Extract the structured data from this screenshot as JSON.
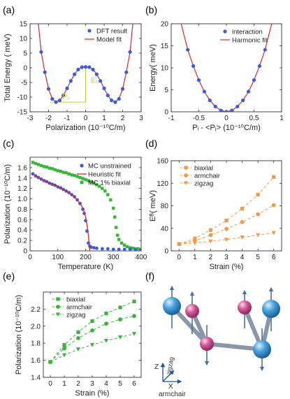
{
  "chart_data": [
    {
      "panel": "(a)",
      "type": "scatter",
      "xlabel": "Polarization (10⁻¹⁰C/m)",
      "ylabel": "Total Energy ( meV)",
      "xlim": [
        -3,
        3
      ],
      "ylim": [
        -15,
        15
      ],
      "xticks": [
        "-3",
        "-2",
        "-1",
        "0",
        "1",
        "2",
        "3"
      ],
      "yticks": [
        "-15",
        "-10",
        "-5",
        "0",
        "5",
        "10",
        "15"
      ],
      "legend": {
        "placement": "top-right",
        "entries": [
          "DFT result",
          "Model fit"
        ]
      },
      "annotations": [
        "P₀",
        "E₀"
      ],
      "series": [
        {
          "name": "DFT result",
          "kind": "points",
          "color": "#3b5bdb",
          "x": [
            -2.4,
            -2.2,
            -2.0,
            -1.8,
            -1.6,
            -1.4,
            -1.2,
            -1.0,
            -0.8,
            -0.6,
            -0.4,
            -0.2,
            0.0,
            0.2,
            0.4,
            0.6,
            0.8,
            1.0,
            1.2,
            1.4,
            1.6,
            1.8,
            2.0,
            2.2,
            2.4
          ],
          "y": [
            5.4,
            -1.5,
            -7.2,
            -10.6,
            -11.7,
            -11.1,
            -9.4,
            -7.0,
            -4.5,
            -2.2,
            -0.6,
            0.2,
            0.3,
            0.2,
            -0.6,
            -2.2,
            -4.5,
            -7.0,
            -9.4,
            -11.1,
            -11.7,
            -10.6,
            -7.2,
            -1.5,
            5.4
          ]
        },
        {
          "name": "Model fit",
          "kind": "line",
          "color": "#e0242b",
          "x": [
            -2.55,
            -2.4,
            -2.2,
            -2.0,
            -1.8,
            -1.6,
            -1.4,
            -1.2,
            -1.0,
            -0.8,
            -0.6,
            -0.4,
            -0.2,
            0.0,
            0.2,
            0.4,
            0.6,
            0.8,
            1.0,
            1.2,
            1.4,
            1.6,
            1.8,
            2.0,
            2.2,
            2.4,
            2.55
          ],
          "y": [
            15,
            5.4,
            -1.5,
            -7.2,
            -10.6,
            -11.7,
            -11.1,
            -9.4,
            -7.0,
            -4.5,
            -2.2,
            -0.6,
            0.2,
            0.3,
            0.2,
            -0.6,
            -2.2,
            -4.5,
            -7.0,
            -9.4,
            -11.1,
            -11.7,
            -10.6,
            -7.2,
            -1.5,
            5.4,
            15
          ]
        }
      ]
    },
    {
      "panel": "(b)",
      "type": "scatter",
      "xlabel": "Pᵢ - <Pⱼ> (10⁻¹⁰C/m)",
      "ylabel": "Energy( meV)",
      "xlim": [
        -1,
        1
      ],
      "ylim": [
        0,
        20
      ],
      "xticks": [
        "-1",
        "-0.5",
        "0",
        "0.5",
        "1"
      ],
      "yticks": [
        "0",
        "5",
        "10",
        "15",
        "20"
      ],
      "legend": {
        "placement": "top-right",
        "entries": [
          "interaction",
          "Harmonic fit"
        ]
      },
      "series": [
        {
          "name": "interaction",
          "kind": "points",
          "color": "#3b5bdb",
          "x": [
            -0.7,
            -0.6,
            -0.5,
            -0.4,
            -0.3,
            -0.2,
            -0.1,
            0.0,
            0.1,
            0.2,
            0.3,
            0.4,
            0.5,
            0.6,
            0.7
          ],
          "y": [
            14.1,
            10.4,
            7.2,
            4.6,
            2.6,
            1.2,
            0.3,
            0.0,
            0.3,
            1.2,
            2.6,
            4.6,
            7.2,
            10.4,
            14.1
          ]
        },
        {
          "name": "Harmonic fit",
          "kind": "line",
          "color": "#e0242b",
          "x": [
            -0.82,
            -0.7,
            -0.6,
            -0.5,
            -0.4,
            -0.3,
            -0.2,
            -0.1,
            0.0,
            0.1,
            0.2,
            0.3,
            0.4,
            0.5,
            0.6,
            0.7,
            0.82
          ],
          "y": [
            20,
            14.1,
            10.4,
            7.2,
            4.6,
            2.6,
            1.2,
            0.3,
            0.0,
            0.3,
            1.2,
            2.6,
            4.6,
            7.2,
            10.4,
            14.1,
            20
          ]
        }
      ]
    },
    {
      "panel": "(c)",
      "type": "scatter",
      "xlabel": "Temperature (K)",
      "ylabel": "Polarization (10⁻¹⁰C/m)",
      "xlim": [
        0,
        400
      ],
      "ylim": [
        0,
        1.8
      ],
      "xticks": [
        "0",
        "100",
        "200",
        "300",
        "400"
      ],
      "yticks": [
        "0",
        "0.2",
        "0.4",
        "0.6",
        "0.8",
        "1.0",
        "1.2",
        "1.4",
        "1.6"
      ],
      "legend": {
        "placement": "top-right",
        "entries": [
          "MC unstrained",
          "Heuristic fit",
          "MC 1% biaxial"
        ]
      },
      "series": [
        {
          "name": "MC unstrained",
          "kind": "points",
          "color": "#3b5bdb",
          "x": [
            10,
            20,
            30,
            40,
            50,
            60,
            70,
            80,
            90,
            100,
            110,
            120,
            130,
            140,
            150,
            160,
            170,
            180,
            190,
            195,
            200,
            205,
            210,
            215,
            220,
            230,
            240,
            260,
            280,
            300,
            320,
            340,
            360,
            380,
            400
          ],
          "y": [
            1.48,
            1.44,
            1.41,
            1.38,
            1.35,
            1.33,
            1.3,
            1.28,
            1.26,
            1.23,
            1.21,
            1.18,
            1.15,
            1.12,
            1.08,
            1.04,
            0.98,
            0.91,
            0.8,
            0.72,
            0.58,
            0.38,
            0.15,
            0.09,
            0.07,
            0.06,
            0.05,
            0.04,
            0.04,
            0.03,
            0.03,
            0.03,
            0.03,
            0.02,
            0.02
          ]
        },
        {
          "name": "Heuristic fit",
          "kind": "line",
          "color": "#e0242b",
          "x": [
            10,
            30,
            50,
            70,
            90,
            110,
            130,
            150,
            170,
            185,
            195,
            200,
            205,
            208,
            211,
            213,
            215
          ],
          "y": [
            1.48,
            1.41,
            1.35,
            1.3,
            1.26,
            1.21,
            1.15,
            1.08,
            0.98,
            0.87,
            0.75,
            0.65,
            0.5,
            0.38,
            0.25,
            0.12,
            0.0
          ]
        },
        {
          "name": "MC 1% biaxial",
          "kind": "points",
          "color": "#3cb43c",
          "x": [
            10,
            20,
            30,
            40,
            50,
            60,
            70,
            80,
            90,
            100,
            110,
            120,
            130,
            140,
            150,
            160,
            170,
            180,
            190,
            200,
            210,
            220,
            230,
            240,
            250,
            260,
            270,
            280,
            290,
            300,
            305,
            310,
            315,
            320,
            330,
            340,
            350,
            360,
            370,
            380,
            390,
            400
          ],
          "y": [
            1.7,
            1.68,
            1.66,
            1.64,
            1.62,
            1.61,
            1.59,
            1.58,
            1.56,
            1.54,
            1.53,
            1.51,
            1.5,
            1.48,
            1.46,
            1.45,
            1.43,
            1.41,
            1.39,
            1.37,
            1.35,
            1.33,
            1.3,
            1.27,
            1.24,
            1.2,
            1.15,
            1.08,
            0.98,
            0.82,
            0.65,
            0.45,
            0.3,
            0.22,
            0.15,
            0.11,
            0.08,
            0.06,
            0.05,
            0.04,
            0.04,
            0.03
          ]
        }
      ]
    },
    {
      "panel": "(d)",
      "type": "line",
      "xlabel": "Strain (%)",
      "ylabel": "Eᴮ( meV)",
      "xlim": [
        -0.5,
        6.5
      ],
      "ylim": [
        0,
        160
      ],
      "xticks": [
        "0",
        "1",
        "2",
        "3",
        "4",
        "5",
        "6"
      ],
      "yticks": [
        "0",
        "40",
        "80",
        "120",
        "160"
      ],
      "legend": {
        "placement": "top-left",
        "entries": [
          "biaxial",
          "armchair",
          "zigzag"
        ]
      },
      "x": [
        0,
        1,
        2,
        3,
        4,
        5,
        6
      ],
      "series": [
        {
          "name": "biaxial",
          "marker": "square",
          "color": "#f39a4a",
          "values": [
            12,
            22,
            37,
            54,
            75,
            100,
            131
          ]
        },
        {
          "name": "armchair",
          "marker": "circle",
          "color": "#f39a4a",
          "values": [
            12,
            18,
            28,
            39,
            51,
            65,
            81
          ]
        },
        {
          "name": "zigzag",
          "marker": "triangle",
          "color": "#f39a4a",
          "values": [
            12,
            14,
            17,
            20,
            24,
            28,
            32
          ]
        }
      ]
    },
    {
      "panel": "(e)",
      "type": "line",
      "xlabel": "Strain (%)",
      "ylabel": "Polarization (10⁻¹⁰C/m)",
      "xlim": [
        -0.5,
        6.5
      ],
      "ylim": [
        1.4,
        2.4
      ],
      "xticks": [
        "0",
        "1",
        "2",
        "3",
        "4",
        "5",
        "6"
      ],
      "yticks": [
        "1.4",
        "1.6",
        "1.8",
        "2.0",
        "2.2"
      ],
      "legend": {
        "placement": "top-left",
        "entries": [
          "biaxial",
          "armchair",
          "zigzag"
        ]
      },
      "x": [
        0,
        1,
        2,
        3,
        4,
        5,
        6
      ],
      "series": [
        {
          "name": "biaxial",
          "marker": "square",
          "color": "#3cb43c",
          "values": [
            1.58,
            1.78,
            1.93,
            2.06,
            2.15,
            2.22,
            2.29
          ]
        },
        {
          "name": "armchair",
          "marker": "circle",
          "color": "#3cb43c",
          "values": [
            1.58,
            1.74,
            1.86,
            1.95,
            2.03,
            2.08,
            2.12
          ]
        },
        {
          "name": "zigzag",
          "marker": "triangle",
          "color": "#3cb43c",
          "values": [
            1.58,
            1.66,
            1.73,
            1.78,
            1.83,
            1.87,
            1.91
          ]
        }
      ]
    }
  ],
  "panel_f": {
    "label": "(f)",
    "axis_labels": {
      "z": "Z",
      "zigzag": "zigzag",
      "x": "X",
      "armchair": "armchair"
    },
    "atom_colors": {
      "blue": "#4aa3df",
      "pink": "#d65a9a",
      "bond": "#8a97a8",
      "arrow": "#4a6fa5"
    }
  }
}
